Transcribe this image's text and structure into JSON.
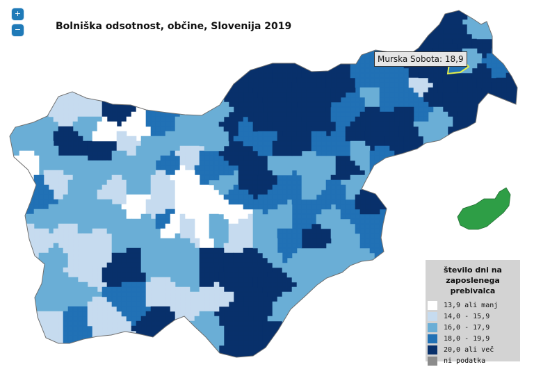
{
  "title": "Bolniška odsotnost, občine, Slovenija 2019",
  "zoom": {
    "in_label": "+",
    "out_label": "−"
  },
  "tooltip": {
    "text": "Murska Sobota: 18,9"
  },
  "legend": {
    "title": "število dni na zaposlenega prebivalca",
    "classes": [
      {
        "label": "13,9 ali manj",
        "color": "#ffffff"
      },
      {
        "label": "14,0 - 15,9",
        "color": "#c6dbef"
      },
      {
        "label": "16,0 - 17,9",
        "color": "#6aaed6"
      },
      {
        "label": "18,0 - 19,9",
        "color": "#2171b5"
      },
      {
        "label": "20,0 ali več",
        "color": "#08306b"
      },
      {
        "label": "ni podatka",
        "color": "#8c8c8c"
      }
    ]
  },
  "colors": {
    "border": "#8a8a8a",
    "highlight": "#e6f04a"
  }
}
